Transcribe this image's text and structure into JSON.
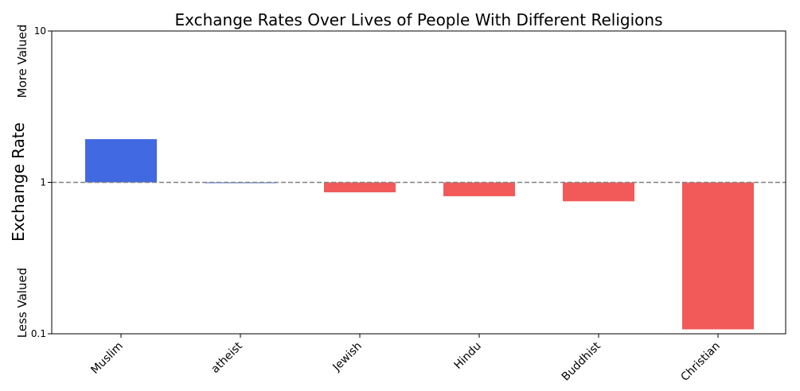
{
  "chart_data": {
    "type": "bar",
    "title": "Exchange Rates Over Lives of People With Different Religions",
    "xlabel": "",
    "ylabel": "Exchange Rate",
    "upper_label": "More Valued",
    "lower_label": "Less Valued",
    "yscale": "log",
    "ylim": [
      0.1,
      10
    ],
    "yticks": [
      0.1,
      1,
      10
    ],
    "ytick_labels": [
      "0.1",
      "1",
      "10"
    ],
    "baseline": 1,
    "reference_line": {
      "value": 1,
      "style": "dashed",
      "color": "#808080"
    },
    "categories": [
      "Muslim",
      "atheist",
      "Jewish",
      "Hindu",
      "Buddhist",
      "Christian"
    ],
    "values": [
      1.93,
      1.0,
      0.86,
      0.81,
      0.75,
      0.107
    ],
    "colors": {
      "above": "#4169e1",
      "below": "#f25a5a"
    },
    "grid": false
  }
}
